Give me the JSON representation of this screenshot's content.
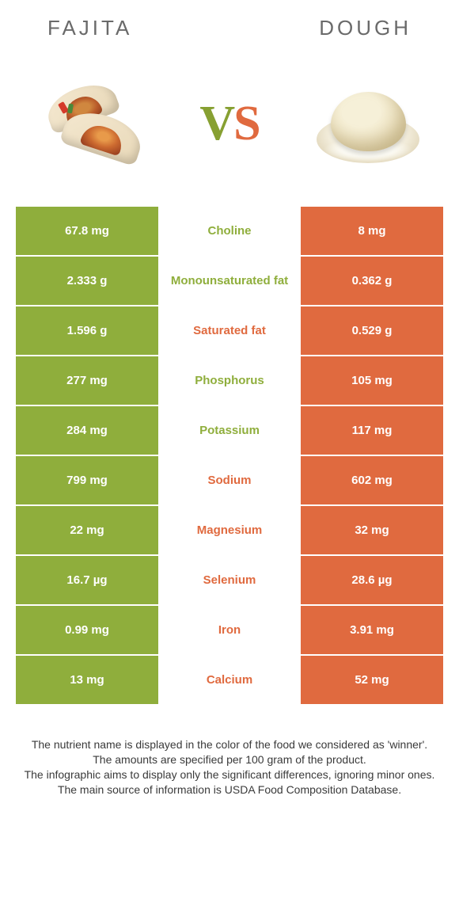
{
  "header": {
    "left_title": "FAJITA",
    "right_title": "DOUGH"
  },
  "vs": {
    "v": "V",
    "s": "S"
  },
  "colors": {
    "green": "#8fae3c",
    "orange": "#e06a3f",
    "header_text": "#6a6a6a",
    "footnote_text": "#3a3a3a"
  },
  "rows": [
    {
      "left": "67.8 mg",
      "nutrient": "Choline",
      "right": "8 mg",
      "winner": "left"
    },
    {
      "left": "2.333 g",
      "nutrient": "Monounsaturated fat",
      "right": "0.362 g",
      "winner": "left"
    },
    {
      "left": "1.596 g",
      "nutrient": "Saturated fat",
      "right": "0.529 g",
      "winner": "right"
    },
    {
      "left": "277 mg",
      "nutrient": "Phosphorus",
      "right": "105 mg",
      "winner": "left"
    },
    {
      "left": "284 mg",
      "nutrient": "Potassium",
      "right": "117 mg",
      "winner": "left"
    },
    {
      "left": "799 mg",
      "nutrient": "Sodium",
      "right": "602 mg",
      "winner": "right"
    },
    {
      "left": "22 mg",
      "nutrient": "Magnesium",
      "right": "32 mg",
      "winner": "right"
    },
    {
      "left": "16.7 µg",
      "nutrient": "Selenium",
      "right": "28.6 µg",
      "winner": "right"
    },
    {
      "left": "0.99 mg",
      "nutrient": "Iron",
      "right": "3.91 mg",
      "winner": "right"
    },
    {
      "left": "13 mg",
      "nutrient": "Calcium",
      "right": "52 mg",
      "winner": "right"
    }
  ],
  "footnotes": [
    "The nutrient name is displayed in the color of the food we considered as 'winner'.",
    "The amounts are specified per 100 gram of the product.",
    "The infographic aims to display only the significant differences, ignoring minor ones.",
    "The main source of information is USDA Food Composition Database."
  ]
}
